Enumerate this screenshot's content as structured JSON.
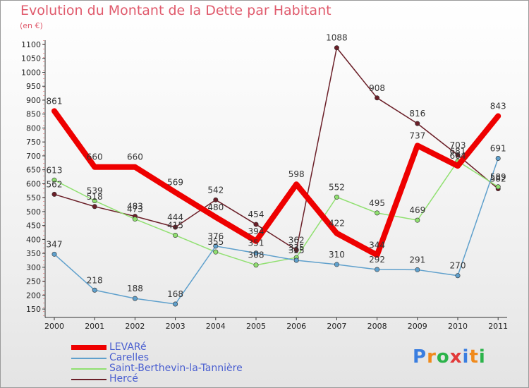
{
  "title": "Evolution du Montant de la Dette par Habitant",
  "unit_label": "(en €)",
  "logo": {
    "text": "Proxiti",
    "colors": [
      "#3a7ee0",
      "#f08a1c",
      "#2bb34a",
      "#e23a3a",
      "#3a7ee0",
      "#f08a1c",
      "#2bb34a"
    ]
  },
  "chart_data": {
    "type": "line",
    "x": [
      "2000",
      "2001",
      "2002",
      "2003",
      "2004",
      "2005",
      "2006",
      "2007",
      "2008",
      "2009",
      "2010",
      "2011"
    ],
    "y_ticks": [
      150,
      200,
      250,
      300,
      350,
      400,
      450,
      500,
      550,
      600,
      650,
      700,
      750,
      800,
      850,
      900,
      950,
      1000,
      1050,
      1100
    ],
    "ylim": [
      130,
      1100
    ],
    "grid": false,
    "legend_position": "bottom-left",
    "series": [
      {
        "name": "Hercé",
        "color": "#6b1f28",
        "width": 1.5,
        "values": [
          562,
          518,
          483,
          444,
          542,
          454,
          362,
          1088,
          908,
          816,
          703,
          582
        ],
        "labels": [
          "562",
          "518",
          "483",
          "444",
          "542",
          "454",
          "362",
          "1088",
          "908",
          "816",
          "703",
          "582"
        ]
      },
      {
        "name": "Saint-Berthevin-la-Tannière",
        "color": "#90e070",
        "width": 1.5,
        "values": [
          613,
          539,
          473,
          415,
          355,
          308,
          335,
          552,
          495,
          469,
          681,
          589
        ],
        "labels": [
          "613",
          "539",
          "473",
          "415",
          "355",
          "308",
          "335",
          "552",
          "495",
          "469",
          "681",
          "589"
        ]
      },
      {
        "name": "Carelles",
        "color": "#5fa0cc",
        "width": 1.5,
        "values": [
          347,
          218,
          188,
          168,
          376,
          351,
          325,
          310,
          292,
          291,
          270,
          691
        ],
        "labels": [
          "347",
          "218",
          "188",
          "168",
          "376",
          "351",
          "325",
          "310",
          "292",
          "291",
          "270",
          "691"
        ]
      },
      {
        "name": "LEVARé",
        "color": "#ee0000",
        "width": 8,
        "values": [
          861,
          660,
          660,
          569,
          480,
          394,
          598,
          422,
          344,
          737,
          664,
          843
        ],
        "labels": [
          "861",
          "660",
          "660",
          "569",
          "480",
          "394",
          "598",
          "422",
          "344",
          "737",
          "664",
          "843"
        ]
      }
    ]
  }
}
